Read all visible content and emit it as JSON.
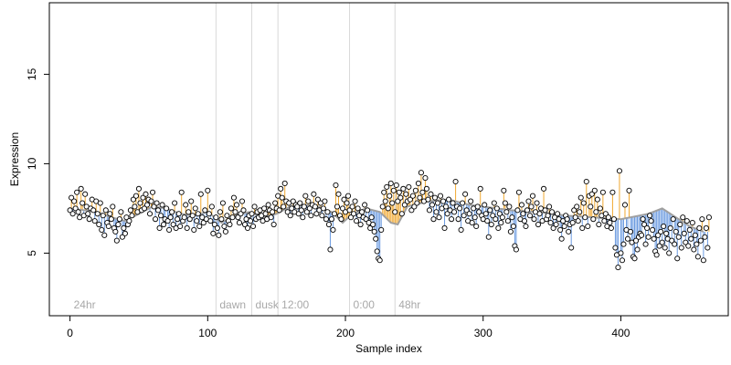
{
  "chart_data": {
    "type": "scatter",
    "title": "",
    "xlabel": "Sample index",
    "ylabel": "Expression",
    "xlim": [
      -15,
      478
    ],
    "ylim": [
      1.5,
      19
    ],
    "xticks": [
      0,
      100,
      200,
      300,
      400
    ],
    "yticks": [
      5,
      10,
      15
    ],
    "baseline_smooth": [
      [
        0,
        7.5
      ],
      [
        20,
        7.3
      ],
      [
        30,
        7.0
      ],
      [
        40,
        6.8
      ],
      [
        50,
        7.2
      ],
      [
        60,
        7.6
      ],
      [
        70,
        7.5
      ],
      [
        80,
        7.2
      ],
      [
        90,
        7.1
      ],
      [
        100,
        7.3
      ],
      [
        105,
        7.0
      ],
      [
        110,
        6.7
      ],
      [
        120,
        7.1
      ],
      [
        130,
        7.3
      ],
      [
        140,
        7.0
      ],
      [
        150,
        7.2
      ],
      [
        160,
        7.6
      ],
      [
        170,
        7.7
      ],
      [
        180,
        7.6
      ],
      [
        190,
        7.3
      ],
      [
        198,
        6.7
      ],
      [
        205,
        7.2
      ],
      [
        215,
        7.5
      ],
      [
        225,
        7.3
      ],
      [
        233,
        6.7
      ],
      [
        238,
        6.6
      ],
      [
        245,
        7.6
      ],
      [
        260,
        7.9
      ],
      [
        275,
        8.0
      ],
      [
        290,
        7.7
      ],
      [
        300,
        7.6
      ],
      [
        320,
        7.4
      ],
      [
        340,
        7.3
      ],
      [
        360,
        7.1
      ],
      [
        380,
        7.0
      ],
      [
        400,
        6.9
      ],
      [
        420,
        7.2
      ],
      [
        430,
        7.5
      ],
      [
        440,
        7.0
      ],
      [
        450,
        6.5
      ],
      [
        460,
        6.2
      ]
    ],
    "groups": [
      {
        "label": "24hr",
        "start": 0
      },
      {
        "label": "dawn",
        "start": 106
      },
      {
        "label": "dusk",
        "start": 132
      },
      {
        "label": "12:00",
        "start": 151
      },
      {
        "label": "0:00",
        "start": 203
      },
      {
        "label": "48hr",
        "start": 236
      }
    ],
    "n_points": 465,
    "values": [
      7.4,
      8.1,
      7.2,
      7.9,
      7.5,
      8.4,
      7.3,
      7.0,
      8.6,
      7.8,
      7.1,
      8.3,
      7.6,
      7.2,
      6.9,
      7.5,
      8.0,
      7.4,
      6.8,
      7.9,
      7.2,
      6.6,
      7.8,
      6.3,
      7.1,
      6.0,
      7.4,
      6.7,
      6.5,
      7.2,
      6.9,
      7.6,
      6.4,
      6.2,
      5.7,
      6.6,
      6.9,
      7.3,
      5.9,
      6.4,
      6.1,
      7.0,
      6.6,
      6.8,
      7.4,
      7.1,
      8.0,
      7.6,
      8.2,
      7.3,
      8.6,
      7.8,
      7.4,
      8.1,
      7.5,
      8.3,
      7.7,
      8.0,
      7.2,
      7.9,
      8.4,
      7.6,
      6.9,
      7.8,
      7.4,
      6.4,
      7.1,
      7.7,
      6.6,
      6.9,
      7.5,
      6.8,
      6.3,
      7.0,
      7.3,
      6.6,
      7.8,
      6.4,
      6.9,
      7.2,
      6.5,
      8.4,
      6.8,
      7.0,
      7.7,
      6.4,
      7.3,
      6.9,
      7.9,
      7.1,
      6.3,
      7.5,
      6.8,
      7.2,
      6.5,
      8.3,
      7.0,
      6.7,
      7.4,
      6.9,
      8.5,
      7.2,
      6.8,
      7.6,
      6.1,
      6.6,
      7.0,
      6.4,
      6.0,
      7.3,
      6.9,
      7.8,
      6.5,
      6.2,
      7.1,
      6.8,
      6.6,
      7.5,
      7.0,
      8.1,
      7.3,
      7.7,
      7.0,
      6.7,
      7.2,
      7.9,
      7.4,
      6.6,
      6.9,
      6.4,
      7.1,
      6.8,
      7.2,
      6.5,
      7.6,
      6.9,
      7.3,
      7.0,
      7.4,
      7.1,
      6.8,
      7.5,
      7.2,
      6.9,
      7.7,
      7.4,
      7.0,
      7.3,
      6.6,
      7.8,
      7.5,
      8.2,
      7.4,
      8.6,
      8.1,
      7.6,
      8.9,
      7.9,
      7.3,
      7.8,
      7.1,
      7.5,
      7.9,
      7.3,
      7.7,
      7.6,
      7.2,
      7.8,
      7.4,
      7.0,
      7.6,
      8.2,
      7.3,
      7.9,
      7.5,
      7.1,
      7.7,
      8.3,
      7.6,
      7.2,
      8.0,
      7.4,
      7.8,
      7.1,
      7.5,
      7.9,
      6.9,
      7.3,
      6.6,
      5.2,
      6.9,
      6.3,
      7.2,
      8.8,
      7.6,
      8.3,
      7.1,
      6.9,
      7.5,
      8.0,
      7.3,
      7.8,
      8.2,
      7.4,
      7.0,
      7.6,
      7.2,
      7.9,
      6.8,
      7.5,
      7.1,
      6.6,
      7.3,
      7.0,
      7.7,
      6.9,
      7.4,
      6.7,
      6.4,
      7.0,
      6.6,
      6.2,
      5.8,
      5.1,
      4.7,
      4.6,
      6.3,
      7.6,
      8.4,
      7.9,
      8.7,
      7.5,
      8.2,
      8.9,
      7.8,
      8.5,
      7.3,
      8.8,
      7.9,
      8.4,
      8.1,
      7.2,
      8.6,
      7.7,
      8.3,
      7.9,
      8.7,
      8.0,
      7.4,
      8.2,
      7.6,
      8.5,
      7.8,
      8.9,
      8.1,
      9.5,
      8.4,
      7.9,
      9.2,
      8.6,
      8.0,
      7.4,
      8.3,
      7.7,
      6.9,
      8.1,
      7.3,
      7.8,
      7.0,
      8.2,
      7.5,
      7.9,
      6.4,
      7.6,
      7.2,
      8.0,
      7.4,
      6.9,
      7.8,
      7.3,
      9.0,
      7.6,
      6.9,
      7.5,
      6.3,
      7.8,
      7.1,
      8.3,
      7.4,
      6.8,
      7.2,
      7.9,
      6.7,
      7.5,
      7.0,
      6.5,
      7.6,
      7.3,
      8.6,
      7.1,
      6.9,
      7.7,
      7.2,
      6.8,
      5.9,
      7.4,
      6.6,
      7.1,
      7.8,
      6.9,
      7.5,
      6.4,
      7.2,
      6.7,
      7.0,
      8.5,
      7.8,
      7.3,
      6.8,
      7.6,
      6.2,
      7.0,
      6.5,
      5.4,
      5.2,
      7.4,
      8.4,
      6.9,
      7.7,
      7.2,
      6.8,
      6.5,
      7.4,
      7.9,
      7.1,
      7.6,
      8.2,
      6.9,
      7.3,
      7.8,
      6.6,
      7.2,
      7.5,
      6.8,
      8.6,
      7.4,
      6.9,
      7.1,
      7.6,
      6.7,
      7.3,
      6.4,
      7.0,
      6.6,
      7.2,
      6.9,
      6.3,
      5.8,
      6.8,
      6.5,
      7.1,
      6.9,
      6.2,
      6.6,
      5.3,
      6.7,
      7.4,
      7.0,
      7.6,
      6.8,
      7.3,
      8.1,
      6.4,
      7.8,
      7.0,
      9.0,
      6.5,
      8.2,
      7.6,
      8.3,
      6.9,
      8.5,
      7.3,
      8.0,
      6.6,
      7.5,
      7.1,
      8.4,
      6.8,
      7.2,
      6.5,
      7.0,
      6.7,
      6.4,
      8.4,
      6.9,
      5.3,
      4.9,
      4.2,
      9.6,
      5.0,
      4.6,
      5.5,
      7.7,
      6.3,
      5.8,
      8.5,
      6.2,
      5.6,
      4.8,
      4.7,
      5.7,
      5.2,
      5.9,
      6.1,
      6.0,
      6.9,
      6.6,
      5.5,
      6.4,
      5.9,
      7.1,
      6.8,
      6.3,
      5.8,
      5.1,
      4.9,
      6.0,
      5.4,
      6.2,
      5.6,
      6.5,
      5.3,
      6.1,
      5.8,
      5.0,
      6.4,
      5.7,
      6.9,
      5.5,
      6.2,
      4.7,
      5.9,
      6.6,
      5.3,
      7.0,
      6.1,
      5.6,
      6.8,
      5.4,
      6.3,
      5.8,
      6.7,
      5.2,
      6.0,
      5.5,
      4.8,
      6.4,
      5.7,
      6.9,
      4.6,
      5.9,
      6.4,
      5.3,
      7.0
    ],
    "colors": {
      "above": "#f0a830",
      "below": "#6a9ae0",
      "smooth": "#a0a0a0",
      "separator": "#d8d8d8",
      "point_fill": "#ffffff",
      "point_stroke": "#000000",
      "axis": "#000000",
      "group_label": "#a8a8a8"
    },
    "grid": false,
    "legend": "none"
  }
}
